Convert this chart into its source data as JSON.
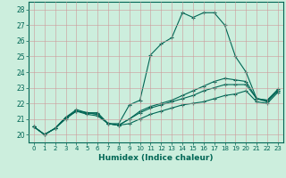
{
  "title": "",
  "xlabel": "Humidex (Indice chaleur)",
  "bg_color": "#cceedd",
  "grid_color": "#cc9999",
  "line_color": "#006655",
  "xlim": [
    -0.5,
    23.5
  ],
  "ylim": [
    19.5,
    28.5
  ],
  "xticks": [
    0,
    1,
    2,
    3,
    4,
    5,
    6,
    7,
    8,
    9,
    10,
    11,
    12,
    13,
    14,
    15,
    16,
    17,
    18,
    19,
    20,
    21,
    22,
    23
  ],
  "yticks": [
    20,
    21,
    22,
    23,
    24,
    25,
    26,
    27,
    28
  ],
  "line_peak": [
    20.5,
    20.0,
    20.4,
    21.1,
    21.6,
    21.4,
    21.4,
    20.7,
    20.7,
    21.9,
    22.2,
    25.1,
    25.8,
    26.2,
    27.8,
    27.5,
    27.8,
    27.8,
    27.0,
    25.0,
    24.0,
    22.3,
    22.2,
    22.8
  ],
  "line_mid2": [
    20.5,
    20.0,
    20.4,
    21.1,
    21.5,
    21.4,
    21.3,
    20.7,
    20.6,
    21.0,
    21.5,
    21.8,
    22.0,
    22.2,
    22.5,
    22.8,
    23.1,
    23.4,
    23.6,
    23.5,
    23.4,
    22.3,
    22.2,
    22.9
  ],
  "line_mid1": [
    20.5,
    20.0,
    20.4,
    21.1,
    21.5,
    21.4,
    21.3,
    20.7,
    20.6,
    21.0,
    21.4,
    21.7,
    21.9,
    22.1,
    22.3,
    22.5,
    22.8,
    23.0,
    23.2,
    23.2,
    23.2,
    22.3,
    22.1,
    22.8
  ],
  "line_bot": [
    20.5,
    20.0,
    20.4,
    21.0,
    21.5,
    21.3,
    21.2,
    20.7,
    20.6,
    20.7,
    21.0,
    21.3,
    21.5,
    21.7,
    21.9,
    22.0,
    22.1,
    22.3,
    22.5,
    22.6,
    22.8,
    22.1,
    22.0,
    22.7
  ]
}
